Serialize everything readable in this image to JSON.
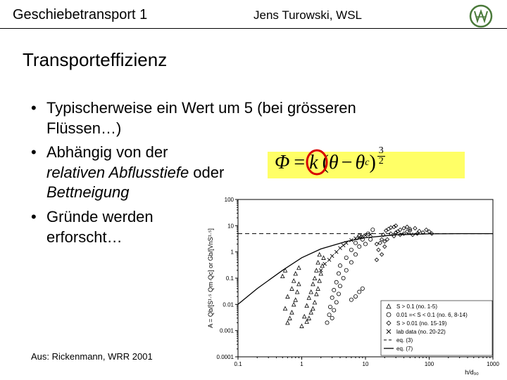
{
  "header": {
    "left": "Geschiebetransport 1",
    "center": "Jens Turowski, WSL",
    "logo_label": "WSL"
  },
  "title": "Transporteffizienz",
  "bullets": {
    "b1a": "Typischerweise ein Wert um 5 (bei grösseren",
    "b1b": "Flüssen…)",
    "b2a": "Abhängig von der",
    "b2b_italic": "relativen Abflusstiefe",
    "b2b_rest": " oder",
    "b2c_italic": "Bettneigung",
    "b3a": "Gründe werden",
    "b3b": "erforscht…"
  },
  "equation": {
    "lhs": "Φ",
    "eq": "=",
    "k": "k",
    "lp": "(",
    "th": "θ",
    "minus": "−",
    "thc": "θ",
    "sub_c": "c",
    "rp": ")",
    "exp_num": "3",
    "exp_den": "2",
    "circle_color": "#d80000",
    "highlight_color": "#ffff66"
  },
  "chart": {
    "type": "scatter",
    "background_color": "#ffffff",
    "axis_color": "#000000",
    "tick_fontsize": 8,
    "label_fontsize": 9,
    "xlabel": "h/d₉₀",
    "ylabel": "A = Qb/[S¹·⁵ Qm·Qc] or Gb/[VnS¹·⁵]",
    "xscale": "log",
    "yscale": "log",
    "xlim": [
      0.1,
      1000
    ],
    "ylim": [
      0.0001,
      100
    ],
    "xticks": [
      0.1,
      1,
      10,
      100,
      1000
    ],
    "yticks": [
      0.0001,
      0.001,
      0.01,
      0.1,
      1,
      10,
      100
    ],
    "xtick_labels": [
      "0.1",
      "1",
      "10",
      "100",
      "1000"
    ],
    "ytick_labels": [
      "0.0001",
      "0.001",
      "0.01",
      "0.1",
      "1",
      "10",
      "100"
    ],
    "hline_y": 5,
    "curve_eq7_x": [
      0.1,
      0.2,
      0.5,
      1,
      2,
      5,
      10,
      30,
      100,
      300,
      1000
    ],
    "curve_eq7_y": [
      0.01,
      0.04,
      0.2,
      0.6,
      1.3,
      2.5,
      3.5,
      4.5,
      4.9,
      5,
      5
    ],
    "series": [
      {
        "name": "S > 0.1 (no. 1-5)",
        "marker": "triangle",
        "fill": "none",
        "stroke": "#000",
        "size": 4
      },
      {
        "name": "0.01 =< S < 0.1 (no. 6, 8-14)",
        "marker": "circle",
        "fill": "none",
        "stroke": "#000",
        "size": 3.5
      },
      {
        "name": "S > 0.01 (no. 15-19)",
        "marker": "diamond",
        "fill": "none",
        "stroke": "#000",
        "size": 4
      },
      {
        "name": "lab data (no. 20-22)",
        "marker": "cross",
        "fill": "#000",
        "stroke": "#000",
        "size": 3
      },
      {
        "name": "eq. (3)",
        "marker": "line-dashed",
        "stroke": "#000",
        "width": 1
      },
      {
        "name": "eq. (7)",
        "marker": "line-solid",
        "stroke": "#000",
        "width": 1.3
      }
    ],
    "legend": {
      "position": "bottom-right",
      "fontsize": 8,
      "items": [
        "S > 0.1 (no. 1-5)",
        "0.01 =< S < 0.1 (no. 6, 8-14)",
        "S > 0.01 (no. 15-19)",
        "lab data (no. 20-22)",
        "eq. (3)",
        "eq. (7)"
      ]
    },
    "points": {
      "triangle": [
        [
          1.0,
          0.0015
        ],
        [
          1.2,
          0.0022
        ],
        [
          1.3,
          0.003
        ],
        [
          1.1,
          0.0035
        ],
        [
          1.4,
          0.005
        ],
        [
          1.5,
          0.007
        ],
        [
          1.2,
          0.009
        ],
        [
          1.6,
          0.012
        ],
        [
          1.3,
          0.018
        ],
        [
          1.7,
          0.025
        ],
        [
          1.4,
          0.03
        ],
        [
          1.8,
          0.04
        ],
        [
          1.5,
          0.06
        ],
        [
          1.9,
          0.08
        ],
        [
          1.6,
          0.1
        ],
        [
          2.0,
          0.15
        ],
        [
          1.7,
          0.2
        ],
        [
          2.1,
          0.3
        ],
        [
          1.8,
          0.4
        ],
        [
          2.2,
          0.6
        ],
        [
          1.9,
          0.8
        ],
        [
          0.6,
          0.002
        ],
        [
          0.65,
          0.003
        ],
        [
          0.7,
          0.005
        ],
        [
          0.55,
          0.007
        ],
        [
          0.75,
          0.01
        ],
        [
          0.8,
          0.015
        ],
        [
          0.6,
          0.02
        ],
        [
          0.85,
          0.03
        ],
        [
          0.7,
          0.04
        ],
        [
          0.9,
          0.06
        ],
        [
          0.75,
          0.08
        ],
        [
          0.5,
          0.12
        ],
        [
          0.8,
          0.15
        ],
        [
          0.55,
          0.2
        ],
        [
          0.9,
          0.25
        ]
      ],
      "circle": [
        [
          2.5,
          0.002
        ],
        [
          3,
          0.003
        ],
        [
          2.7,
          0.004
        ],
        [
          3.2,
          0.006
        ],
        [
          2.8,
          0.008
        ],
        [
          3.5,
          0.012
        ],
        [
          3,
          0.018
        ],
        [
          3.8,
          0.025
        ],
        [
          3.2,
          0.035
        ],
        [
          4,
          0.05
        ],
        [
          3.5,
          0.07
        ],
        [
          4.5,
          0.1
        ],
        [
          3.8,
          0.15
        ],
        [
          5,
          0.2
        ],
        [
          4,
          0.3
        ],
        [
          6,
          0.4
        ],
        [
          5,
          0.6
        ],
        [
          7,
          0.8
        ],
        [
          6,
          1.2
        ],
        [
          8,
          1.6
        ],
        [
          7,
          2.2
        ],
        [
          9,
          3
        ],
        [
          8,
          4
        ],
        [
          10,
          2
        ],
        [
          12,
          3
        ],
        [
          11,
          5
        ],
        [
          13,
          7
        ],
        [
          6,
          0.015
        ],
        [
          7,
          0.02
        ],
        [
          8,
          0.03
        ],
        [
          9,
          0.04
        ]
      ],
      "diamond": [
        [
          15,
          0.5
        ],
        [
          18,
          0.8
        ],
        [
          16,
          1.2
        ],
        [
          20,
          1.6
        ],
        [
          17,
          2.2
        ],
        [
          22,
          3
        ],
        [
          19,
          4.5
        ],
        [
          25,
          5
        ],
        [
          21,
          6.5
        ],
        [
          28,
          4
        ],
        [
          23,
          7.5
        ],
        [
          30,
          5.5
        ],
        [
          25,
          8.5
        ],
        [
          32,
          6
        ],
        [
          28,
          9
        ],
        [
          35,
          4.5
        ],
        [
          30,
          10
        ],
        [
          40,
          5
        ],
        [
          35,
          7
        ],
        [
          45,
          6
        ],
        [
          40,
          8
        ],
        [
          50,
          6.5
        ],
        [
          45,
          9
        ],
        [
          55,
          4.5
        ],
        [
          50,
          7.5
        ],
        [
          65,
          5
        ],
        [
          60,
          8
        ],
        [
          70,
          6.2
        ],
        [
          80,
          5.5
        ],
        [
          90,
          7
        ],
        [
          100,
          6
        ],
        [
          110,
          5
        ],
        [
          15,
          2
        ],
        [
          18,
          3
        ],
        [
          20,
          2.5
        ]
      ],
      "cross": [
        [
          2,
          0.2
        ],
        [
          2.3,
          0.35
        ],
        [
          2.7,
          0.5
        ],
        [
          3,
          0.7
        ],
        [
          3.5,
          1
        ],
        [
          4,
          1.4
        ],
        [
          4.5,
          1.8
        ],
        [
          5,
          2.2
        ],
        [
          6,
          2.8
        ],
        [
          7,
          3.3
        ],
        [
          8,
          3.7
        ],
        [
          9,
          4
        ],
        [
          10,
          4.3
        ],
        [
          12,
          4.6
        ]
      ]
    }
  },
  "citation": "Aus: Rickenmann, WRR 2001"
}
